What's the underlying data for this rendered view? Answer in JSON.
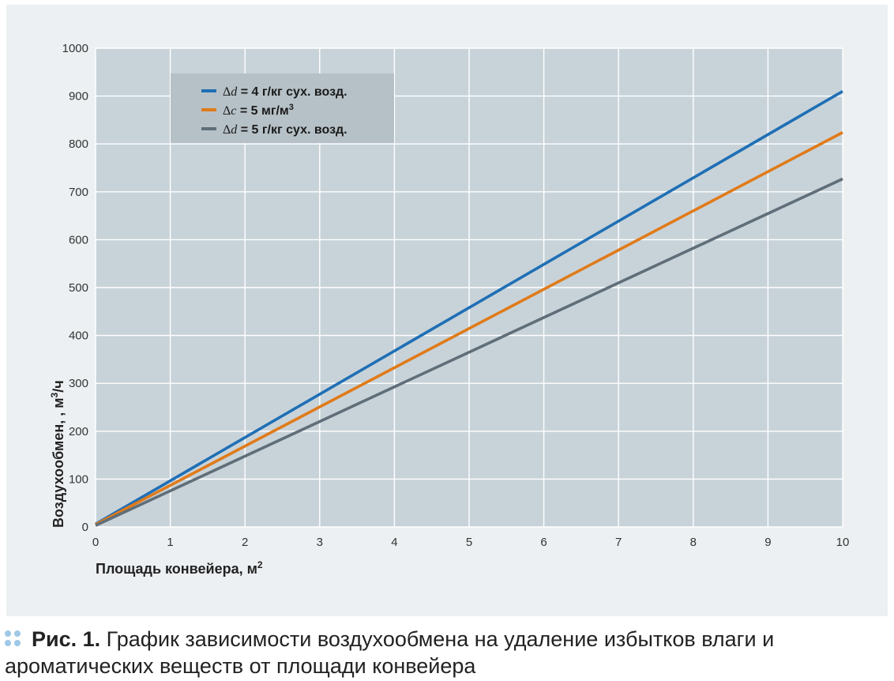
{
  "chart_data": {
    "type": "line",
    "title": "",
    "xlabel": "Площадь конвейера, м",
    "xlabel_sup": "2",
    "ylabel": "Воздухообмен, , м",
    "ylabel_sup": "3",
    "ylabel_suffix": "/ч",
    "xlim": [
      0,
      10
    ],
    "ylim": [
      0,
      1000
    ],
    "x_ticks": [
      "0",
      "1",
      "2",
      "3",
      "4",
      "5",
      "6",
      "7",
      "8",
      "9",
      "10"
    ],
    "y_ticks": [
      "0",
      "100",
      "200",
      "300",
      "400",
      "500",
      "600",
      "700",
      "800",
      "900",
      "1000"
    ],
    "grid": true,
    "legend_position": "top-left",
    "series": [
      {
        "name": "Δd = 4 г/кг сух. возд.",
        "name_var": "d",
        "name_rest": " = 4 г/кг сух. возд.",
        "name_sup": "",
        "color": "#1f6fb5",
        "x": [
          0,
          10
        ],
        "y": [
          6,
          910
        ]
      },
      {
        "name": "Δc = 5 мг/м3",
        "name_var": "c",
        "name_rest": " = 5 мг/м",
        "name_sup": "3",
        "color": "#e07b1a",
        "x": [
          0,
          10
        ],
        "y": [
          5,
          824
        ]
      },
      {
        "name": "Δd = 5 г/кг сух. возд.",
        "name_var": "d",
        "name_rest": " = 5 г/кг сух. возд.",
        "name_sup": "",
        "color": "#5f6e78",
        "x": [
          0,
          10
        ],
        "y": [
          3,
          727
        ]
      }
    ]
  },
  "caption": {
    "label": "Рис. 1.",
    "text": " График зависимости воздухообмена на удаление избытков влаги и ароматических веществ от площади конвейера"
  },
  "colors": {
    "plot_background": "#c8d3d9",
    "panel_background": "#edf0f2",
    "gridline": "#ffffff",
    "legend_background": "#b6c1c7",
    "caption_dots": "#9ec8e6"
  }
}
